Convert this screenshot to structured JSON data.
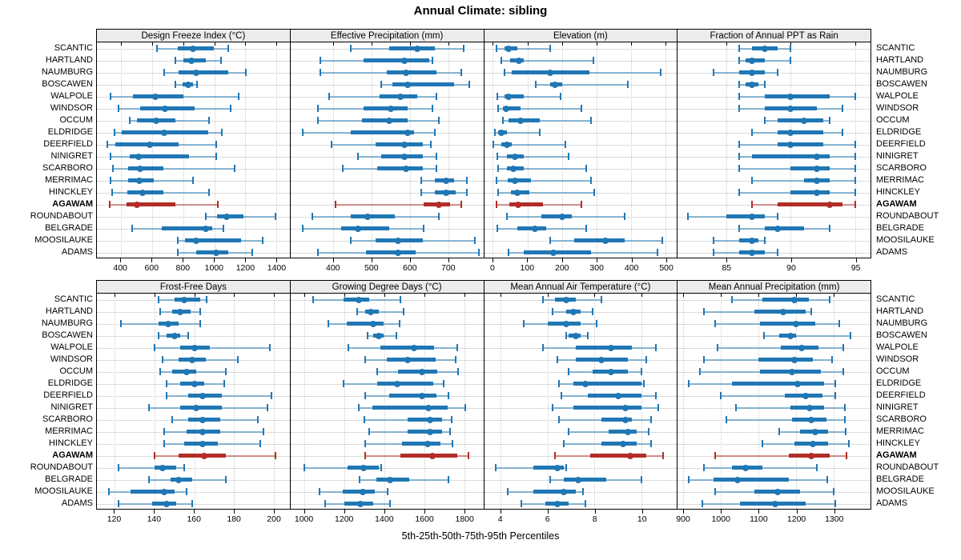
{
  "title": "Annual Climate: sibling",
  "caption": "5th-25th-50th-75th-95th Percentiles",
  "percentiles": [
    5,
    25,
    50,
    75,
    95
  ],
  "highlight_station": "AGAWAM",
  "colors": {
    "series_blue": "#2077b4",
    "series_red": "#b22d27",
    "header_bg": "#ececec",
    "grid_horizontal": "#b9b9b9",
    "grid_vertical": "#cfcfcf",
    "border": "#000000"
  },
  "stations": [
    "SCANTIC",
    "HARTLAND",
    "NAUMBURG",
    "BOSCAWEN",
    "WALPOLE",
    "WINDSOR",
    "OCCUM",
    "ELDRIDGE",
    "DEERFIELD",
    "NINIGRET",
    "SCARBORO",
    "MERRIMAC",
    "HINCKLEY",
    "AGAWAM",
    "ROUNDABOUT",
    "BELGRADE",
    "MOOSILAUKE",
    "ADAMS"
  ],
  "chart_data": [
    {
      "type": "errorbar",
      "row": "top",
      "title": "Design Freeze Index (°C)",
      "xlim": [
        245,
        1485
      ],
      "ticks": [
        400,
        600,
        800,
        1000,
        1200,
        1400
      ],
      "values": [
        [
          630,
          765,
          865,
          995,
          1090
        ],
        [
          750,
          800,
          855,
          945,
          1045
        ],
        [
          680,
          770,
          885,
          1090,
          1205
        ],
        [
          750,
          795,
          830,
          865,
          890
        ],
        [
          330,
          475,
          620,
          800,
          1155
        ],
        [
          385,
          525,
          685,
          875,
          1105
        ],
        [
          455,
          505,
          625,
          750,
          965
        ],
        [
          360,
          405,
          680,
          960,
          1050
        ],
        [
          310,
          365,
          585,
          770,
          1010
        ],
        [
          335,
          455,
          515,
          835,
          1015
        ],
        [
          350,
          445,
          525,
          670,
          1130
        ],
        [
          335,
          445,
          520,
          610,
          865
        ],
        [
          345,
          440,
          540,
          675,
          965
        ],
        [
          325,
          435,
          505,
          750,
          1025
        ],
        [
          945,
          1020,
          1080,
          1185,
          1395
        ],
        [
          470,
          660,
          945,
          985,
          1060
        ],
        [
          765,
          810,
          885,
          1170,
          1310
        ],
        [
          765,
          885,
          1015,
          1090,
          1245
        ]
      ]
    },
    {
      "type": "errorbar",
      "row": "top",
      "title": "Effective Precipitation (mm)",
      "xlim": [
        288,
        792
      ],
      "ticks": [
        400,
        500,
        600,
        700
      ],
      "values": [
        [
          445,
          545,
          620,
          665,
          740
        ],
        [
          365,
          480,
          585,
          650,
          660
        ],
        [
          365,
          540,
          590,
          670,
          735
        ],
        [
          525,
          555,
          595,
          715,
          755
        ],
        [
          390,
          520,
          575,
          620,
          670
        ],
        [
          360,
          480,
          550,
          595,
          660
        ],
        [
          360,
          475,
          545,
          595,
          675
        ],
        [
          320,
          445,
          595,
          610,
          665
        ],
        [
          395,
          510,
          585,
          635,
          655
        ],
        [
          465,
          525,
          585,
          635,
          670
        ],
        [
          425,
          515,
          590,
          635,
          670
        ],
        [
          630,
          665,
          695,
          715,
          750
        ],
        [
          630,
          665,
          695,
          720,
          750
        ],
        [
          405,
          635,
          675,
          705,
          735
        ],
        [
          345,
          445,
          490,
          560,
          675
        ],
        [
          320,
          420,
          465,
          545,
          635
        ],
        [
          445,
          510,
          570,
          635,
          770
        ],
        [
          360,
          485,
          570,
          615,
          780
        ]
      ]
    },
    {
      "type": "errorbar",
      "row": "top",
      "title": "Elevation (m)",
      "xlim": [
        -25,
        532
      ],
      "ticks": [
        0,
        100,
        200,
        300,
        400,
        500
      ],
      "values": [
        [
          10,
          35,
          45,
          70,
          165
        ],
        [
          25,
          50,
          75,
          90,
          290
        ],
        [
          35,
          55,
          165,
          280,
          485
        ],
        [
          125,
          165,
          180,
          200,
          390
        ],
        [
          13,
          35,
          45,
          90,
          195
        ],
        [
          15,
          30,
          38,
          80,
          255
        ],
        [
          30,
          45,
          80,
          135,
          285
        ],
        [
          7,
          15,
          25,
          40,
          135
        ],
        [
          2,
          25,
          40,
          55,
          210
        ],
        [
          13,
          42,
          65,
          90,
          220
        ],
        [
          15,
          40,
          60,
          90,
          270
        ],
        [
          11,
          43,
          65,
          110,
          285
        ],
        [
          15,
          52,
          72,
          105,
          293
        ],
        [
          11,
          47,
          74,
          144,
          256
        ],
        [
          40,
          140,
          200,
          228,
          380
        ],
        [
          13,
          70,
          123,
          155,
          270
        ],
        [
          165,
          235,
          325,
          380,
          490
        ],
        [
          45,
          90,
          175,
          285,
          475
        ]
      ]
    },
    {
      "type": "errorbar",
      "row": "top",
      "title": "Fraction of Annual PPT as Rain",
      "xlim": [
        81.2,
        96.2
      ],
      "ticks": [
        85,
        90,
        95
      ],
      "values": [
        [
          86,
          87,
          88,
          89,
          90
        ],
        [
          86,
          86.5,
          87,
          88,
          90
        ],
        [
          84,
          86,
          87,
          88,
          89
        ],
        [
          86,
          86.5,
          87,
          87.5,
          88
        ],
        [
          86,
          88,
          90,
          93,
          95
        ],
        [
          86,
          88,
          90,
          92,
          94
        ],
        [
          88,
          89,
          91,
          92.5,
          93
        ],
        [
          87,
          89,
          90,
          92.5,
          94
        ],
        [
          86,
          89,
          90,
          92.5,
          95
        ],
        [
          86,
          87,
          92,
          93,
          95
        ],
        [
          86,
          90,
          92,
          93,
          95
        ],
        [
          87,
          91,
          92,
          93,
          95
        ],
        [
          86,
          90,
          92,
          93,
          95
        ],
        [
          87,
          89,
          93,
          94,
          95
        ],
        [
          82,
          85,
          87,
          88,
          89
        ],
        [
          86,
          88,
          89,
          91,
          93
        ],
        [
          84,
          86,
          87,
          87.5,
          88
        ],
        [
          84,
          86,
          87,
          88,
          89
        ]
      ]
    },
    {
      "type": "errorbar",
      "row": "bottom",
      "title": "Frost-Free Days",
      "xlim": [
        111,
        208
      ],
      "ticks": [
        120,
        140,
        160,
        180,
        200
      ],
      "values": [
        [
          142,
          150,
          155,
          163,
          166
        ],
        [
          143,
          149,
          153,
          158,
          163
        ],
        [
          123,
          142,
          147,
          152,
          163
        ],
        [
          142,
          146,
          150,
          153,
          157
        ],
        [
          140,
          153,
          160,
          168,
          198
        ],
        [
          144,
          152,
          159,
          166,
          182
        ],
        [
          143,
          149,
          156,
          161,
          176
        ],
        [
          146,
          153,
          160,
          165,
          175
        ],
        [
          146,
          157,
          164,
          174,
          199
        ],
        [
          137,
          153,
          161,
          174,
          197
        ],
        [
          149,
          157,
          164,
          173,
          192
        ],
        [
          145,
          156,
          164,
          173,
          195
        ],
        [
          145,
          155,
          164,
          172,
          193
        ],
        [
          140,
          152,
          165,
          176,
          201
        ],
        [
          122,
          140,
          144,
          151,
          155
        ],
        [
          137,
          148,
          152,
          159,
          176
        ],
        [
          117,
          128,
          145,
          150,
          156
        ],
        [
          122,
          139,
          146,
          151,
          159
        ]
      ]
    },
    {
      "type": "errorbar",
      "row": "bottom",
      "title": "Growing Degree Days (°C)",
      "xlim": [
        930,
        1895
      ],
      "ticks": [
        1000,
        1200,
        1400,
        1600,
        1800
      ],
      "values": [
        [
          1045,
          1195,
          1270,
          1325,
          1480
        ],
        [
          1265,
          1305,
          1330,
          1370,
          1495
        ],
        [
          1120,
          1210,
          1345,
          1395,
          1475
        ],
        [
          1315,
          1345,
          1370,
          1395,
          1460
        ],
        [
          1220,
          1380,
          1550,
          1650,
          1765
        ],
        [
          1305,
          1410,
          1515,
          1655,
          1755
        ],
        [
          1365,
          1470,
          1590,
          1665,
          1770
        ],
        [
          1195,
          1365,
          1465,
          1645,
          1695
        ],
        [
          1305,
          1425,
          1590,
          1660,
          1720
        ],
        [
          1270,
          1340,
          1620,
          1715,
          1805
        ],
        [
          1300,
          1515,
          1630,
          1690,
          1735
        ],
        [
          1325,
          1515,
          1630,
          1690,
          1730
        ],
        [
          1305,
          1490,
          1615,
          1680,
          1740
        ],
        [
          1305,
          1480,
          1640,
          1765,
          1820
        ],
        [
          1000,
          1215,
          1295,
          1370,
          1385
        ],
        [
          1275,
          1360,
          1430,
          1525,
          1720
        ],
        [
          1075,
          1190,
          1290,
          1350,
          1415
        ],
        [
          1105,
          1200,
          1280,
          1345,
          1430
        ]
      ]
    },
    {
      "type": "errorbar",
      "row": "bottom",
      "title": "Mean Annual Air Temperature (°C)",
      "xlim": [
        3.3,
        11.5
      ],
      "ticks": [
        4,
        6,
        8,
        10
      ],
      "values": [
        [
          5.8,
          6.3,
          6.8,
          7.2,
          8.3
        ],
        [
          6.2,
          6.8,
          7.1,
          7.4,
          7.9
        ],
        [
          5.0,
          6.0,
          6.8,
          7.4,
          8.1
        ],
        [
          6.8,
          6.9,
          7.2,
          7.4,
          7.7
        ],
        [
          5.8,
          7.2,
          8.7,
          9.6,
          10.6
        ],
        [
          6.4,
          7.2,
          8.3,
          9.4,
          10.2
        ],
        [
          6.9,
          7.9,
          8.7,
          9.4,
          10.0
        ],
        [
          6.5,
          7.1,
          7.6,
          10.0,
          10.1
        ],
        [
          6.6,
          7.7,
          9.0,
          10.0,
          10.6
        ],
        [
          6.2,
          7.1,
          9.3,
          10.0,
          10.7
        ],
        [
          6.5,
          8.3,
          9.3,
          9.6,
          10.4
        ],
        [
          6.9,
          8.6,
          9.4,
          9.8,
          10.3
        ],
        [
          6.7,
          8.3,
          9.2,
          9.8,
          10.4
        ],
        [
          6.3,
          7.8,
          9.5,
          10.2,
          10.9
        ],
        [
          3.8,
          5.4,
          6.4,
          6.7,
          6.8
        ],
        [
          6.1,
          6.7,
          7.3,
          8.5,
          10.0
        ],
        [
          4.3,
          5.4,
          6.7,
          7.2,
          7.5
        ],
        [
          4.9,
          5.9,
          6.4,
          6.9,
          7.6
        ]
      ]
    },
    {
      "type": "errorbar",
      "row": "bottom",
      "title": "Mean Annual Precipitation (mm)",
      "xlim": [
        885,
        1398
      ],
      "ticks": [
        900,
        1000,
        1100,
        1200,
        1300
      ],
      "values": [
        [
          1030,
          1110,
          1195,
          1235,
          1290
        ],
        [
          955,
          1090,
          1165,
          1225,
          1240
        ],
        [
          985,
          1105,
          1200,
          1250,
          1315
        ],
        [
          1115,
          1155,
          1185,
          1200,
          1345
        ],
        [
          990,
          1160,
          1215,
          1260,
          1325
        ],
        [
          955,
          1100,
          1195,
          1245,
          1295
        ],
        [
          945,
          1105,
          1190,
          1265,
          1325
        ],
        [
          915,
          1030,
          1205,
          1275,
          1305
        ],
        [
          1000,
          1170,
          1225,
          1270,
          1305
        ],
        [
          1040,
          1185,
          1235,
          1275,
          1330
        ],
        [
          1015,
          1190,
          1240,
          1280,
          1330
        ],
        [
          1155,
          1210,
          1250,
          1285,
          1333
        ],
        [
          1110,
          1195,
          1245,
          1285,
          1340
        ],
        [
          985,
          1180,
          1240,
          1290,
          1335
        ],
        [
          955,
          1030,
          1065,
          1110,
          1255
        ],
        [
          915,
          980,
          1045,
          1180,
          1283
        ],
        [
          985,
          1090,
          1150,
          1210,
          1300
        ],
        [
          950,
          1050,
          1145,
          1225,
          1305
        ]
      ]
    }
  ]
}
